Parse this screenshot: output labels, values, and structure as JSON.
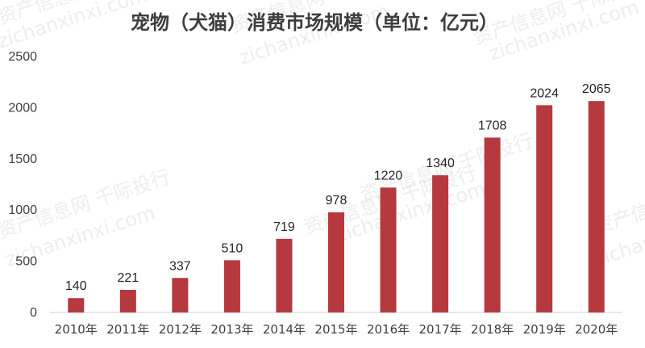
{
  "chart_data": {
    "type": "bar",
    "title": "宠物（犬猫）消费市场规模（单位：亿元）",
    "categories": [
      "2010年",
      "2011年",
      "2012年",
      "2013年",
      "2014年",
      "2015年",
      "2016年",
      "2017年",
      "2018年",
      "2019年",
      "2020年"
    ],
    "values": [
      140,
      221,
      337,
      510,
      719,
      978,
      1220,
      1340,
      1708,
      2024,
      2065
    ],
    "ylim": [
      0,
      2500
    ],
    "yticks": [
      0,
      500,
      1000,
      1500,
      2000,
      2500
    ],
    "grid": false,
    "legend": "none",
    "bar_color": "#b5393e"
  },
  "watermarks": [
    "资产信息网 千际投行",
    "zichanxinxi.com"
  ]
}
